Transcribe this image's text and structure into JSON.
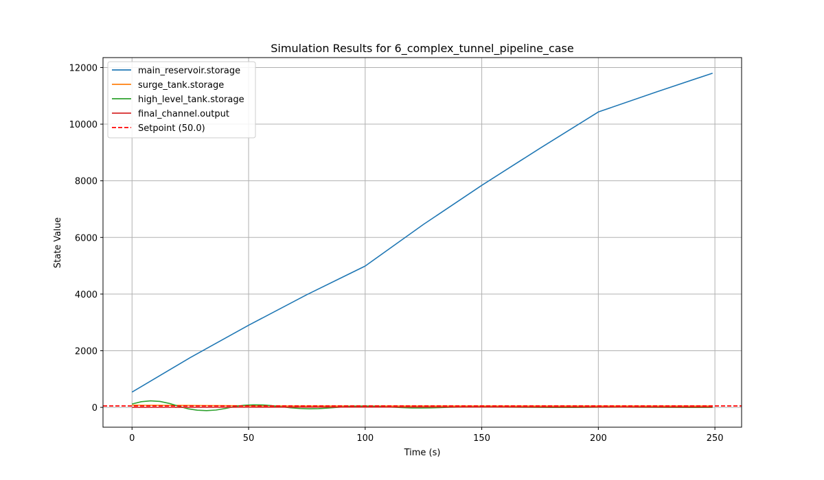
{
  "chart_data": {
    "type": "line",
    "title": "Simulation Results for 6_complex_tunnel_pipeline_case",
    "xlabel": "Time (s)",
    "ylabel": "State Value",
    "xlim": [
      -12.45,
      261.45
    ],
    "ylim": [
      -700,
      12350
    ],
    "xticks": [
      0,
      50,
      100,
      150,
      200,
      250
    ],
    "yticks": [
      0,
      2000,
      4000,
      6000,
      8000,
      10000,
      12000
    ],
    "grid": true,
    "legend_position": "top-left",
    "series": [
      {
        "name": "main_reservoir.storage",
        "color": "#1f77b4",
        "style": "solid",
        "x": [
          0,
          25,
          50,
          75,
          100,
          125,
          150,
          175,
          200,
          225,
          249
        ],
        "y": [
          540,
          1760,
          2900,
          3980,
          4990,
          6460,
          7840,
          9150,
          10430,
          11140,
          11800
        ]
      },
      {
        "name": "surge_tank.storage",
        "color": "#ff7f0e",
        "style": "solid",
        "x": [
          0,
          5,
          10,
          20,
          30,
          40,
          50,
          60,
          70,
          80,
          100,
          150,
          200,
          249
        ],
        "y": [
          80,
          75,
          72,
          70,
          65,
          60,
          55,
          52,
          50,
          50,
          50,
          50,
          50,
          50
        ]
      },
      {
        "name": "high_level_tank.storage",
        "color": "#2ca02c",
        "style": "solid",
        "x": [
          0,
          4,
          8,
          12,
          16,
          20,
          24,
          28,
          32,
          36,
          40,
          44,
          48,
          52,
          56,
          60,
          64,
          68,
          72,
          76,
          80,
          84,
          88,
          92,
          96,
          100,
          104,
          108,
          112,
          116,
          120,
          124,
          128,
          132,
          136,
          140,
          150,
          160,
          170,
          180,
          190,
          200,
          210,
          220,
          230,
          240,
          249
        ],
        "y": [
          120,
          200,
          230,
          210,
          140,
          40,
          -50,
          -100,
          -115,
          -95,
          -40,
          30,
          75,
          90,
          85,
          60,
          20,
          -15,
          -40,
          -50,
          -45,
          -25,
          0,
          25,
          40,
          45,
          38,
          20,
          5,
          -10,
          -20,
          -22,
          -18,
          -8,
          2,
          10,
          15,
          10,
          2,
          -4,
          -2,
          5,
          8,
          4,
          0,
          -2,
          0
        ]
      },
      {
        "name": "final_channel.output",
        "color": "#d62728",
        "style": "solid",
        "x": [
          0,
          50,
          100,
          150,
          200,
          249
        ],
        "y": [
          0,
          5,
          10,
          12,
          13,
          14
        ]
      },
      {
        "name": "Setpoint (50.0)",
        "color": "#ff0000",
        "style": "dashed",
        "x": [
          -12.45,
          261.45
        ],
        "y": [
          50,
          50
        ]
      }
    ]
  }
}
